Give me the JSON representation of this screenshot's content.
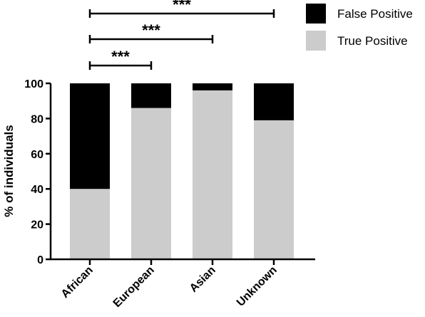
{
  "chart_data": {
    "type": "bar",
    "stacked": true,
    "percent": true,
    "categories": [
      "African",
      "European",
      "Asian",
      "Unknown"
    ],
    "series": [
      {
        "name": "True Positive",
        "color": "#cccccc",
        "values": [
          40,
          86,
          96,
          79
        ]
      },
      {
        "name": "False Positive",
        "color": "#000000",
        "values": [
          60,
          14,
          4,
          21
        ]
      }
    ],
    "ylabel": "% of individuals",
    "xlabel": "",
    "ylim": [
      0,
      100
    ],
    "yticks": [
      0,
      20,
      40,
      60,
      80,
      100
    ],
    "grid": false,
    "legend_position": "top-right",
    "legend_order": [
      "False Positive",
      "True Positive"
    ],
    "significance": [
      {
        "from": "African",
        "to": "Asian",
        "label": "***"
      },
      {
        "from": "African",
        "to": "European",
        "label": "***"
      },
      {
        "from": "African",
        "to": "Unknown",
        "label": "***"
      }
    ]
  }
}
